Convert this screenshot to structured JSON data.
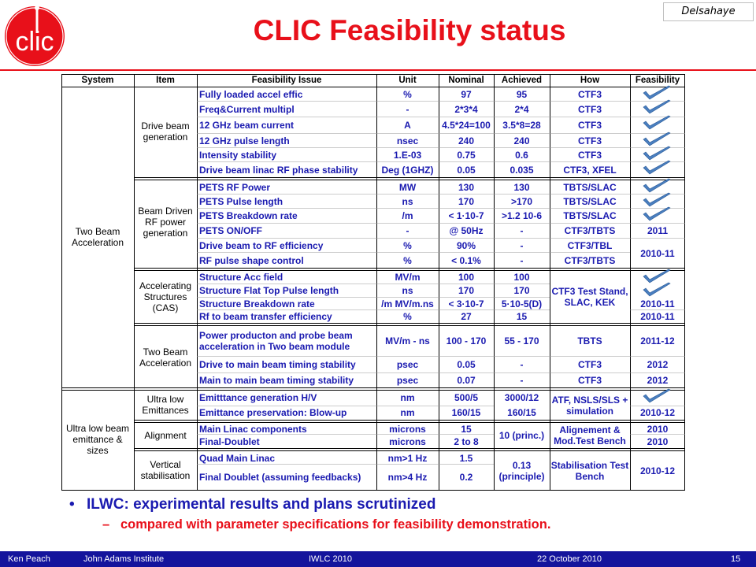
{
  "header": {
    "title": "CLIC Feasibility status",
    "author_badge": "Delsahaye",
    "logo_icon": "clic-logo"
  },
  "colors": {
    "accent_red": "#e8101a",
    "text_blue": "#1a1ab0",
    "footer_blue": "#14149c",
    "check_blue": "#4a7fc0"
  },
  "table": {
    "headers": [
      "System",
      "Item",
      "Feasibility  Issue",
      "Unit",
      "Nominal",
      "Achieved",
      "How",
      "Feasibility"
    ],
    "systems": [
      "Two Beam Acceleration",
      "Ultra low beam emittance & sizes"
    ],
    "items": [
      "Drive beam generation",
      "Beam Driven RF power generation",
      "Accelerating Structures (CAS)",
      "Two Beam Acceleration",
      "Ultra low Emittances",
      "Alignment",
      "Vertical stabilisation"
    ],
    "rows": [
      [
        "Fully loaded accel effic",
        "%",
        "97",
        "95",
        "CTF3",
        "check"
      ],
      [
        "Freq&Current multipl",
        "-",
        "2*3*4",
        "2*4",
        "CTF3",
        "check"
      ],
      [
        "12 GHz beam current",
        "A",
        "4.5*24=100",
        "3.5*8=28",
        "CTF3",
        "check"
      ],
      [
        "12 GHz pulse length",
        "nsec",
        "240",
        "240",
        "CTF3",
        "check"
      ],
      [
        "Intensity stability",
        "1.E-03",
        "0.75",
        "0.6",
        "CTF3",
        "check"
      ],
      [
        "Drive beam linac  RF phase stability",
        "Deg (1GHZ)",
        "0.05",
        "0.035",
        "CTF3, XFEL",
        "check"
      ],
      [
        "PETS RF Power",
        "MW",
        "130",
        "130",
        "TBTS/SLAC",
        "check"
      ],
      [
        "PETS Pulse length",
        "ns",
        "170",
        ">170",
        "TBTS/SLAC",
        "check"
      ],
      [
        "PETS Breakdown rate",
        "/m",
        "< 1·10-7",
        ">1.2 10-6",
        "TBTS/SLAC",
        "check"
      ],
      [
        "PETS ON/OFF",
        "-",
        "@ 50Hz",
        "-",
        "CTF3/TBTS",
        "2011"
      ],
      [
        "Drive beam to RF efficiency",
        "%",
        "90%",
        "-",
        "CTF3/TBL",
        "2010-11"
      ],
      [
        "RF pulse shape control",
        "%",
        "< 0.1%",
        "-",
        "CTF3/TBTS",
        ""
      ],
      [
        "Structure Acc field",
        "MV/m",
        "100",
        "100",
        "CTF3 Test Stand, SLAC, KEK",
        "check"
      ],
      [
        "Structure Flat Top Pulse length",
        "ns",
        "170",
        "170",
        "",
        "check"
      ],
      [
        "Structure Breakdown rate",
        "/m MV/m.ns",
        "<  3·10-7",
        "5·10-5(D)",
        "",
        "2010-11"
      ],
      [
        "Rf to beam transfer efficiency",
        "%",
        "27",
        "15",
        "",
        "2010-11"
      ],
      [
        "Power producton and probe beam acceleration in Two beam module",
        "MV/m  -  ns",
        "100 - 170",
        "55 - 170",
        "TBTS",
        "2011-12"
      ],
      [
        "Drive to main beam timing stability",
        "psec",
        "0.05",
        "-",
        "CTF3",
        "2012"
      ],
      [
        "Main to main beam timing stability",
        "psec",
        "0.07",
        "-",
        "CTF3",
        "2012"
      ],
      [
        "Emitttance generation H/V",
        "nm",
        "500/5",
        "3000/12",
        "ATF, NSLS/SLS + simulation",
        "check"
      ],
      [
        "Emittance     preservation:    Blow-up",
        "nm",
        "160/15",
        "160/15",
        "",
        "2010-12"
      ],
      [
        "Main Linac components",
        "microns",
        "15",
        "10 (princ.)",
        "Alignement & Mod.Test Bench",
        "2010"
      ],
      [
        "Final-Doublet",
        "microns",
        "2 to 8",
        "",
        "",
        "2010"
      ],
      [
        "Quad Main Linac",
        "nm>1 Hz",
        "1.5",
        "0.13 (principle)",
        "Stabilisation Test Bench",
        "2010-12"
      ],
      [
        "Final Doublet (assuming feedbacks)",
        "nm>4 Hz",
        "0.2",
        "",
        "",
        ""
      ]
    ]
  },
  "bullets": {
    "main": "ILWC: experimental results and plans scrutinized",
    "sub": "compared with parameter specifications for feasibility demonstration.",
    "main_marker": "•",
    "sub_marker": "–"
  },
  "footer": {
    "author": "Ken Peach",
    "institute": "John Adams Institute",
    "event": "IWLC 2010",
    "date": "22 October 2010",
    "page": "15"
  }
}
